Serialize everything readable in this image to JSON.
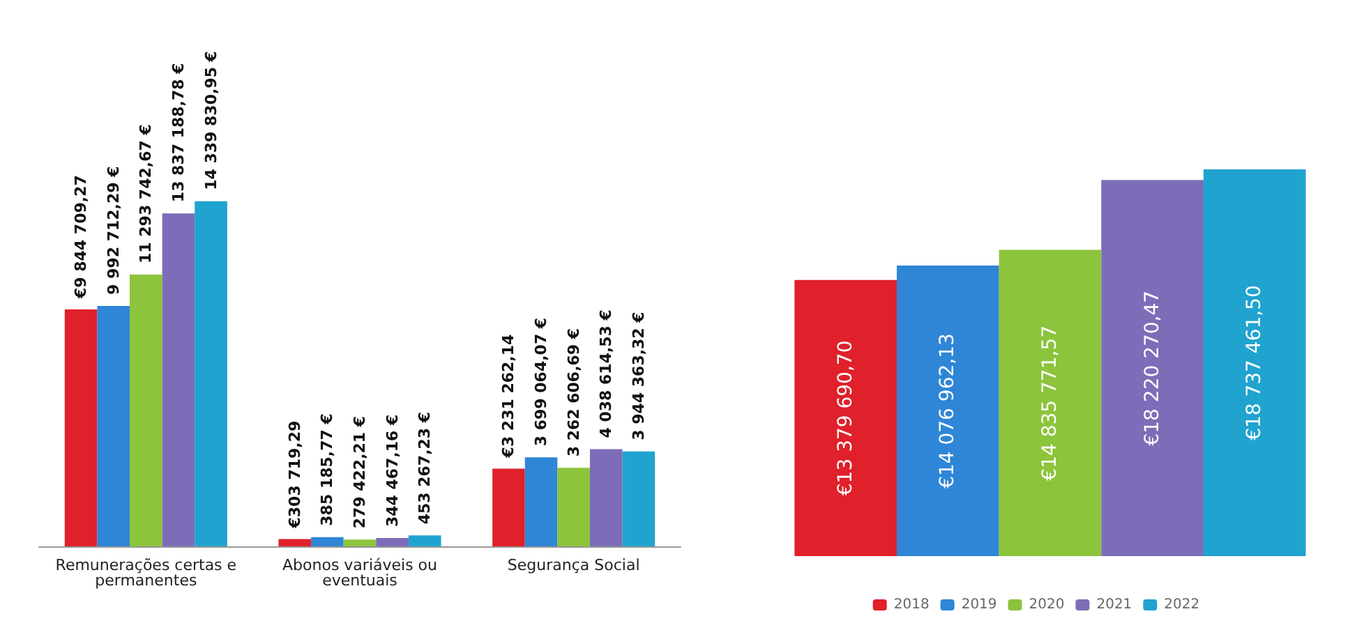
{
  "chart_data": [
    {
      "type": "bar",
      "categories": [
        "Remunerações certas e\npermanentes",
        "Abonos variáveis ou\neventuais",
        "Segurança Social"
      ],
      "tick_labels": "x",
      "legend": false,
      "series": [
        {
          "color": "#e0202a",
          "values": [
            9844709.27,
            303719.29,
            3231262.14
          ],
          "value_labels": [
            "€9 844 709,27",
            "€303 719,29",
            "€3 231 262,14"
          ]
        },
        {
          "color": "#2f86d6",
          "values": [
            9992712.29,
            385185.77,
            3699064.07
          ],
          "value_labels": [
            "9 992 712,29 €",
            "385 185,77 €",
            "3 699 064,07 €"
          ]
        },
        {
          "color": "#8cc43c",
          "values": [
            11293742.67,
            279422.21,
            3262606.69
          ],
          "value_labels": [
            "11 293 742,67 €",
            "279 422,21 €",
            "3 262 606,69 €"
          ]
        },
        {
          "color": "#7d6db8",
          "values": [
            13837188.78,
            344467.16,
            4038614.53
          ],
          "value_labels": [
            "13 837 188,78 €",
            "344 467,16 €",
            "4 038 614,53 €"
          ]
        },
        {
          "color": "#21a3cf",
          "values": [
            14339830.95,
            453267.23,
            3944363.32
          ],
          "value_labels": [
            "14 339 830,95 €",
            "453 267,23 €",
            "3 944 363,32 €"
          ]
        }
      ]
    },
    {
      "type": "bar",
      "categories": [
        null
      ],
      "tick_labels": false,
      "legend": "bottom",
      "series": [
        {
          "name": "2018",
          "color": "#e0202a",
          "values": [
            13379690.7
          ],
          "value_labels": [
            "€13 379 690,70"
          ]
        },
        {
          "name": "2019",
          "color": "#2f86d6",
          "values": [
            14076962.13
          ],
          "value_labels": [
            "€14 076 962,13"
          ]
        },
        {
          "name": "2020",
          "color": "#8cc43c",
          "values": [
            14835771.57
          ],
          "value_labels": [
            "€14 835 771,57"
          ]
        },
        {
          "name": "2021",
          "color": "#7d6db8",
          "values": [
            18220270.47
          ],
          "value_labels": [
            "€18 220 270,47"
          ]
        },
        {
          "name": "2022",
          "color": "#21a3cf",
          "values": [
            18737461.5
          ],
          "value_labels": [
            "€18 737 461,50"
          ]
        }
      ]
    }
  ]
}
